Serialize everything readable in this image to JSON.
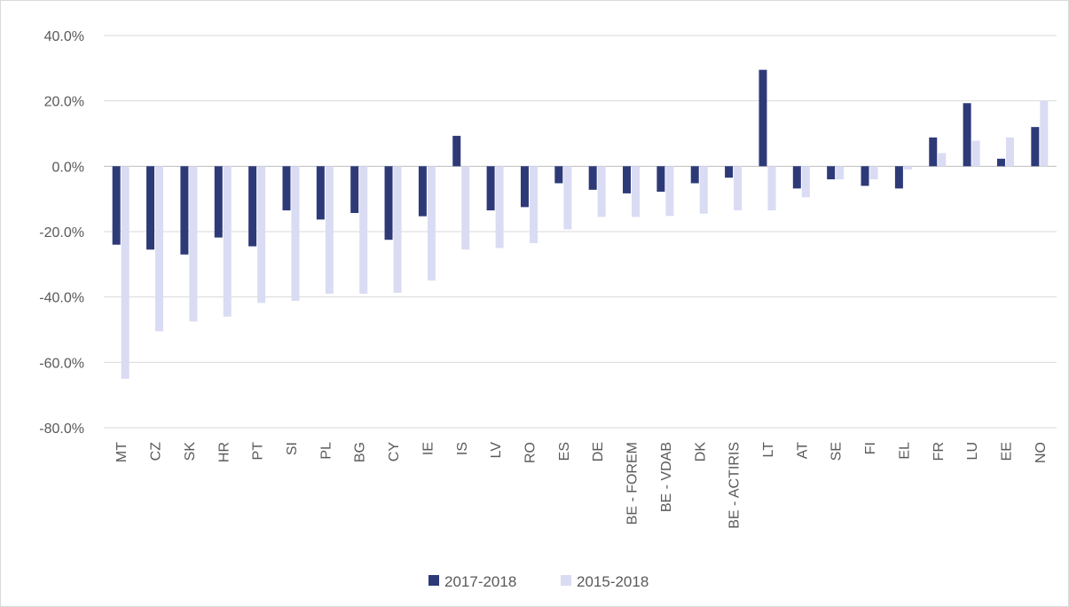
{
  "chart_data": {
    "type": "bar",
    "categories": [
      "MT",
      "CZ",
      "SK",
      "HR",
      "PT",
      "SI",
      "PL",
      "BG",
      "CY",
      "IE",
      "IS",
      "LV",
      "RO",
      "ES",
      "DE",
      "BE - FOREM",
      "BE - VDAB",
      "DK",
      "BE - ACTIRIS",
      "LT",
      "AT",
      "SE",
      "FI",
      "EL",
      "FR",
      "LU",
      "EE",
      "NO"
    ],
    "series": [
      {
        "name": "2017-2018",
        "color": "#2e3a78",
        "values": [
          -24.0,
          -25.5,
          -27.0,
          -21.8,
          -24.5,
          -13.5,
          -16.3,
          -14.3,
          -22.5,
          -15.3,
          9.3,
          -13.5,
          -12.5,
          -5.2,
          -7.2,
          -8.3,
          -7.8,
          -5.2,
          -3.5,
          29.5,
          -6.8,
          -4.0,
          -6.0,
          -6.8,
          8.8,
          19.3,
          2.3,
          12.0
        ]
      },
      {
        "name": "2015-2018",
        "color": "#d9dcf3",
        "values": [
          -65.0,
          -50.5,
          -47.5,
          -46.0,
          -41.8,
          -41.2,
          -39.0,
          -39.0,
          -38.7,
          -35.0,
          -25.5,
          -25.0,
          -23.5,
          -19.3,
          -15.5,
          -15.5,
          -15.2,
          -14.5,
          -13.5,
          -13.5,
          -9.5,
          -4.0,
          -4.0,
          -1.0,
          4.0,
          7.8,
          8.8,
          20.0
        ]
      }
    ],
    "y_ticks": [
      "40.0%",
      "20.0%",
      "0.0%",
      "-20.0%",
      "-40.0%",
      "-60.0%",
      "-80.0%"
    ],
    "ylim": [
      -80,
      40
    ],
    "y_step": 20,
    "grid": true,
    "legend_position": "bottom"
  }
}
